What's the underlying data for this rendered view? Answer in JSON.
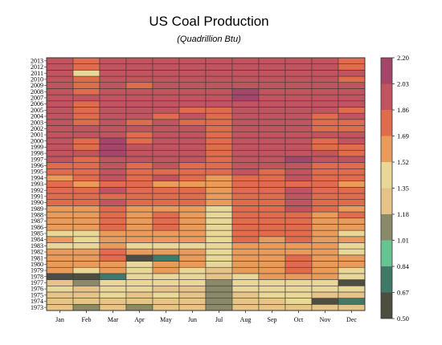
{
  "chart_data": {
    "type": "heatmap",
    "title": "US Coal Production",
    "subtitle": "(Quadrillion Btu)",
    "x_categories": [
      "Jan",
      "Feb",
      "Mar",
      "Apr",
      "May",
      "Jun",
      "Jul",
      "Aug",
      "Sep",
      "Oct",
      "Nov",
      "Dec"
    ],
    "y_categories": [
      "1973",
      "1974",
      "1975",
      "1976",
      "1977",
      "1978",
      "1979",
      "1980",
      "1981",
      "1982",
      "1983",
      "1984",
      "1985",
      "1986",
      "1987",
      "1988",
      "1989",
      "1990",
      "1991",
      "1992",
      "1993",
      "1994",
      "1995",
      "1996",
      "1997",
      "1998",
      "1999",
      "2000",
      "2001",
      "2002",
      "2003",
      "2004",
      "2005",
      "2006",
      "2007",
      "2008",
      "2009",
      "2010",
      "2011",
      "2012",
      "2013"
    ],
    "colorbar": {
      "min": 0.5,
      "max": 2.2,
      "tick_labels": [
        "0.50",
        "0.67",
        "0.84",
        "1.01",
        "1.18",
        "1.35",
        "1.52",
        "1.69",
        "1.86",
        "2.03",
        "2.20"
      ],
      "colors": [
        "#4d4d40",
        "#3f7a66",
        "#66c493",
        "#8a8a6a",
        "#e6c489",
        "#e8d796",
        "#e89b5a",
        "#e06b4d",
        "#c25460",
        "#a3466a"
      ]
    },
    "values": [
      [
        1.22,
        1.15,
        1.25,
        1.15,
        1.25,
        1.25,
        1.1,
        1.28,
        1.22,
        1.22,
        1.32,
        1.3
      ],
      [
        1.22,
        1.2,
        1.25,
        1.28,
        1.28,
        1.22,
        1.1,
        1.3,
        1.32,
        1.35,
        0.62,
        0.75
      ],
      [
        1.3,
        1.25,
        1.35,
        1.32,
        1.35,
        1.25,
        1.1,
        1.3,
        1.35,
        1.42,
        1.28,
        1.32
      ],
      [
        1.35,
        1.3,
        1.42,
        1.35,
        1.32,
        1.32,
        1.1,
        1.4,
        1.42,
        1.45,
        1.35,
        1.35
      ],
      [
        1.3,
        1.1,
        1.42,
        1.4,
        1.4,
        1.4,
        1.15,
        1.42,
        1.45,
        1.5,
        1.42,
        0.62
      ],
      [
        0.55,
        0.55,
        0.75,
        1.4,
        1.45,
        1.38,
        1.22,
        1.48,
        1.55,
        1.6,
        1.55,
        1.45
      ],
      [
        1.55,
        1.5,
        1.6,
        1.42,
        1.52,
        1.5,
        1.3,
        1.55,
        1.6,
        1.7,
        1.55,
        1.5
      ],
      [
        1.6,
        1.52,
        1.6,
        1.48,
        1.55,
        1.52,
        1.4,
        1.6,
        1.62,
        1.72,
        1.55,
        1.55
      ],
      [
        1.65,
        1.6,
        1.7,
        0.62,
        0.8,
        1.55,
        1.5,
        1.62,
        1.65,
        1.72,
        1.55,
        1.6
      ],
      [
        1.58,
        1.52,
        1.72,
        1.6,
        1.55,
        1.52,
        1.38,
        1.6,
        1.62,
        1.68,
        1.52,
        1.5
      ],
      [
        1.45,
        1.42,
        1.55,
        1.42,
        1.5,
        1.5,
        1.35,
        1.55,
        1.62,
        1.62,
        1.52,
        1.5
      ],
      [
        1.52,
        1.45,
        1.62,
        1.58,
        1.68,
        1.58,
        1.4,
        1.72,
        1.65,
        1.72,
        1.55,
        1.55
      ],
      [
        1.48,
        1.42,
        1.68,
        1.6,
        1.62,
        1.55,
        1.38,
        1.7,
        1.72,
        1.75,
        1.55,
        1.5
      ],
      [
        1.58,
        1.55,
        1.75,
        1.65,
        1.7,
        1.62,
        1.45,
        1.72,
        1.78,
        1.82,
        1.6,
        1.65
      ],
      [
        1.62,
        1.58,
        1.78,
        1.68,
        1.7,
        1.66,
        1.5,
        1.76,
        1.8,
        1.84,
        1.62,
        1.68
      ],
      [
        1.62,
        1.6,
        1.8,
        1.66,
        1.7,
        1.66,
        1.48,
        1.78,
        1.78,
        1.85,
        1.68,
        1.7
      ],
      [
        1.68,
        1.62,
        1.82,
        1.6,
        1.65,
        1.62,
        1.4,
        1.78,
        1.8,
        1.88,
        1.7,
        1.62
      ],
      [
        1.8,
        1.72,
        1.92,
        1.76,
        1.82,
        1.78,
        1.62,
        1.86,
        1.82,
        1.96,
        1.78,
        1.75
      ],
      [
        1.82,
        1.72,
        1.82,
        1.76,
        1.82,
        1.72,
        1.66,
        1.86,
        1.82,
        1.92,
        1.75,
        1.72
      ],
      [
        1.8,
        1.75,
        1.88,
        1.8,
        1.82,
        1.76,
        1.68,
        1.85,
        1.8,
        1.88,
        1.76,
        1.78
      ],
      [
        1.72,
        1.68,
        1.82,
        1.72,
        1.68,
        1.62,
        1.55,
        1.72,
        1.76,
        1.82,
        1.7,
        1.68
      ],
      [
        1.55,
        1.72,
        1.92,
        1.82,
        1.88,
        1.82,
        1.66,
        1.86,
        1.86,
        1.92,
        1.82,
        1.78
      ],
      [
        1.82,
        1.76,
        1.92,
        1.8,
        1.86,
        1.8,
        1.72,
        1.88,
        1.86,
        1.92,
        1.8,
        1.75
      ],
      [
        1.85,
        1.8,
        1.96,
        1.85,
        1.9,
        1.75,
        1.8,
        1.92,
        1.9,
        1.98,
        1.85,
        1.82
      ],
      [
        1.92,
        1.86,
        1.98,
        1.88,
        1.92,
        1.88,
        1.82,
        1.95,
        2.02,
        2.05,
        1.88,
        1.92
      ],
      [
        1.98,
        1.88,
        2.05,
        1.88,
        1.92,
        1.88,
        1.85,
        1.96,
        2.0,
        2.02,
        1.92,
        1.86
      ],
      [
        1.92,
        1.82,
        2.08,
        1.88,
        1.9,
        1.88,
        1.82,
        1.96,
        1.92,
        1.96,
        1.86,
        1.82
      ],
      [
        1.92,
        1.86,
        2.08,
        1.82,
        1.92,
        1.92,
        1.8,
        2.0,
        1.96,
        1.98,
        1.86,
        1.88
      ],
      [
        1.96,
        1.9,
        2.02,
        1.86,
        1.92,
        1.92,
        1.86,
        1.98,
        1.92,
        2.02,
        1.92,
        1.9
      ],
      [
        2.02,
        1.9,
        1.98,
        1.92,
        1.92,
        1.9,
        1.86,
        1.92,
        1.9,
        1.96,
        1.85,
        1.86
      ],
      [
        1.92,
        1.86,
        1.96,
        1.82,
        1.88,
        1.86,
        1.8,
        1.92,
        1.9,
        1.96,
        1.82,
        1.84
      ],
      [
        1.92,
        1.86,
        1.98,
        1.92,
        1.8,
        1.92,
        1.86,
        1.96,
        1.92,
        1.95,
        1.86,
        1.88
      ],
      [
        1.9,
        1.82,
        2.02,
        1.88,
        1.92,
        1.86,
        1.86,
        1.98,
        1.92,
        1.96,
        1.9,
        1.86
      ],
      [
        1.92,
        1.8,
        1.96,
        1.88,
        1.9,
        1.92,
        1.9,
        2.02,
        1.96,
        1.96,
        1.92,
        1.92
      ],
      [
        1.96,
        1.9,
        2.0,
        1.92,
        1.96,
        1.92,
        1.92,
        2.06,
        1.96,
        2.0,
        1.92,
        1.95
      ],
      [
        1.98,
        1.86,
        2.02,
        1.96,
        1.98,
        1.96,
        1.95,
        2.06,
        1.98,
        2.02,
        1.98,
        1.96
      ],
      [
        1.92,
        1.82,
        1.96,
        1.86,
        1.88,
        1.9,
        1.92,
        1.96,
        1.92,
        1.96,
        1.9,
        1.92
      ],
      [
        1.92,
        1.82,
        1.96,
        1.9,
        1.9,
        1.92,
        1.92,
        1.96,
        1.92,
        1.95,
        1.9,
        1.86
      ],
      [
        1.98,
        1.5,
        1.98,
        1.9,
        1.92,
        1.92,
        1.92,
        1.98,
        1.92,
        1.96,
        1.92,
        1.9
      ],
      [
        1.98,
        1.84,
        1.96,
        1.88,
        1.9,
        1.88,
        1.9,
        1.96,
        1.92,
        1.96,
        1.9,
        1.82
      ],
      [
        1.92,
        1.82,
        1.96,
        1.88,
        2.02,
        1.92,
        1.92,
        1.98,
        1.9,
        1.92,
        1.88,
        1.86
      ]
    ]
  }
}
